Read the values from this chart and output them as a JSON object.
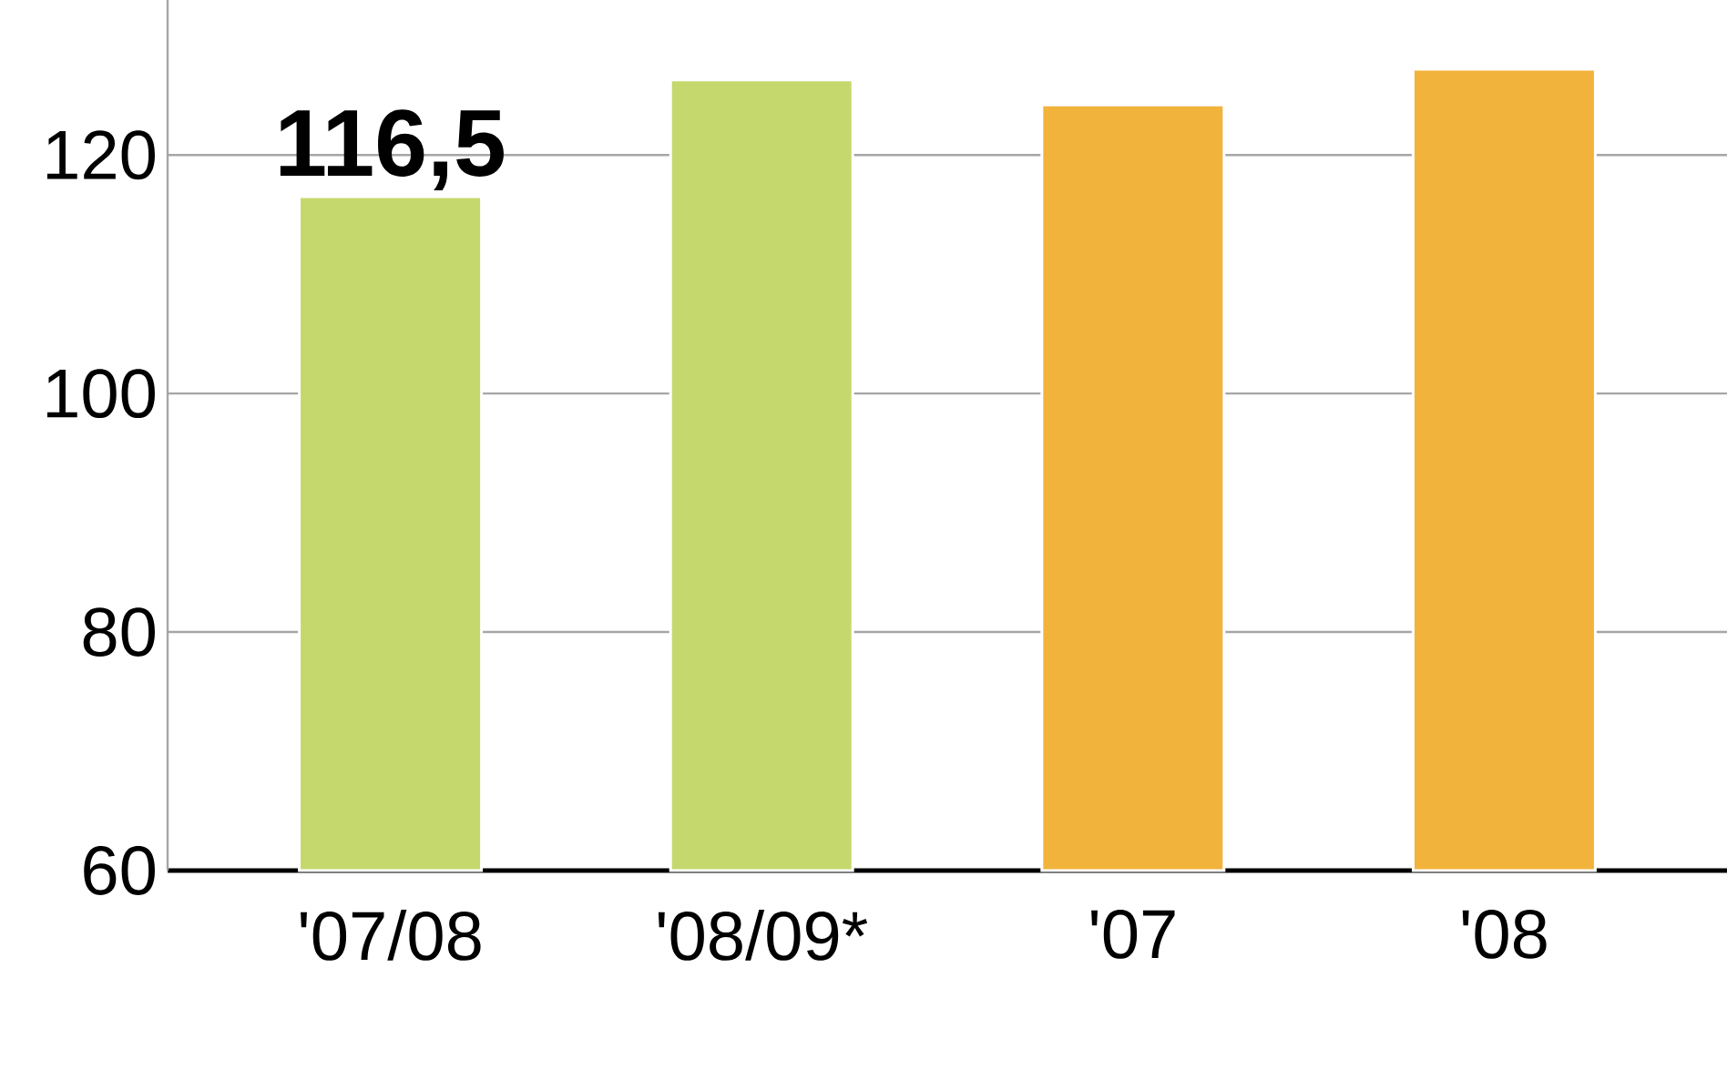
{
  "chart_data": {
    "type": "bar",
    "categories": [
      "'07/08",
      "'08/09*",
      "'07",
      "'08"
    ],
    "values": [
      116.5,
      126.3,
      124.2,
      127.2
    ],
    "colors": [
      "#c5d86d",
      "#c5d86d",
      "#f2b33d",
      "#f2b33d"
    ],
    "value_labels": [
      "116,5",
      null,
      null,
      null
    ],
    "ylim": [
      60,
      133
    ],
    "yticks": [
      60,
      80,
      100,
      120
    ],
    "grid": "y"
  }
}
